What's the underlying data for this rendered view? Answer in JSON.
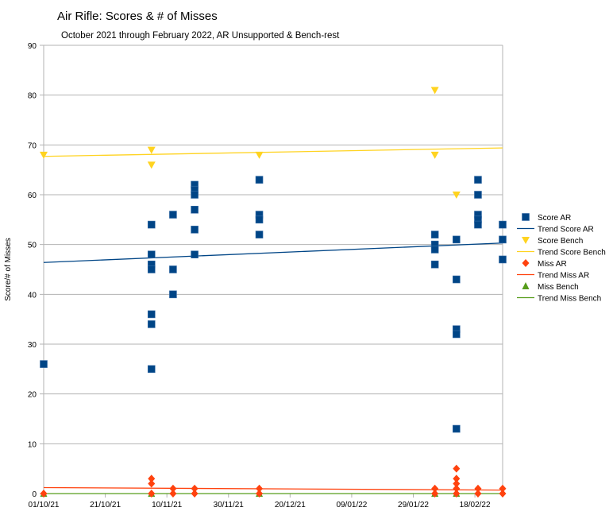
{
  "chart_data": {
    "type": "scatter",
    "title": "Air Rifle: Scores & # of Misses",
    "subtitle": "October 2021 through February 2022, AR Unsupported & Bench-rest",
    "xlabel": "",
    "ylabel": "Score/# of Misses",
    "ylim": [
      0,
      90
    ],
    "yticks": [
      0,
      10,
      20,
      30,
      40,
      50,
      60,
      70,
      80,
      90
    ],
    "xlim": [
      "01/10/21",
      "27/02/22"
    ],
    "xticks": [
      "01/10/21",
      "21/10/21",
      "10/11/21",
      "30/11/21",
      "20/12/21",
      "09/01/22",
      "29/01/22",
      "18/02/22"
    ],
    "grid": "horizontal",
    "legend_position": "right",
    "series": [
      {
        "name": "Score AR",
        "marker": "square",
        "color": "#004586",
        "points": [
          [
            "01/10/21",
            26
          ],
          [
            "05/11/21",
            54
          ],
          [
            "05/11/21",
            48
          ],
          [
            "05/11/21",
            46
          ],
          [
            "05/11/21",
            45
          ],
          [
            "05/11/21",
            36
          ],
          [
            "05/11/21",
            34
          ],
          [
            "05/11/21",
            25
          ],
          [
            "12/11/21",
            56
          ],
          [
            "12/11/21",
            45
          ],
          [
            "12/11/21",
            40
          ],
          [
            "19/11/21",
            62
          ],
          [
            "19/11/21",
            61
          ],
          [
            "19/11/21",
            60
          ],
          [
            "19/11/21",
            57
          ],
          [
            "19/11/21",
            53
          ],
          [
            "19/11/21",
            48
          ],
          [
            "10/12/21",
            63
          ],
          [
            "10/12/21",
            56
          ],
          [
            "10/12/21",
            55
          ],
          [
            "10/12/21",
            52
          ],
          [
            "05/02/22",
            52
          ],
          [
            "05/02/22",
            50
          ],
          [
            "05/02/22",
            49
          ],
          [
            "05/02/22",
            46
          ],
          [
            "12/02/22",
            51
          ],
          [
            "12/02/22",
            43
          ],
          [
            "12/02/22",
            33
          ],
          [
            "12/02/22",
            32
          ],
          [
            "12/02/22",
            13
          ],
          [
            "19/02/22",
            63
          ],
          [
            "19/02/22",
            60
          ],
          [
            "19/02/22",
            56
          ],
          [
            "19/02/22",
            55
          ],
          [
            "19/02/22",
            54
          ],
          [
            "27/02/22",
            54
          ],
          [
            "27/02/22",
            51
          ],
          [
            "27/02/22",
            47
          ]
        ]
      },
      {
        "name": "Trend Score AR",
        "line": true,
        "color": "#004586",
        "points": [
          [
            "01/10/21",
            46.4
          ],
          [
            "27/02/22",
            50.3
          ]
        ]
      },
      {
        "name": "Score Bench",
        "marker": "triangle-down",
        "color": "#ffd320",
        "points": [
          [
            "01/10/21",
            68
          ],
          [
            "05/11/21",
            69
          ],
          [
            "05/11/21",
            66
          ],
          [
            "10/12/21",
            68
          ],
          [
            "05/02/22",
            81
          ],
          [
            "05/02/22",
            68
          ],
          [
            "12/02/22",
            60
          ]
        ]
      },
      {
        "name": "Trend Score Bench",
        "line": true,
        "color": "#ffd320",
        "points": [
          [
            "01/10/21",
            67.7
          ],
          [
            "27/02/22",
            69.4
          ]
        ]
      },
      {
        "name": "Miss AR",
        "marker": "diamond",
        "color": "#ff420e",
        "points": [
          [
            "01/10/21",
            0
          ],
          [
            "05/11/21",
            3
          ],
          [
            "05/11/21",
            2
          ],
          [
            "05/11/21",
            0
          ],
          [
            "12/11/21",
            1
          ],
          [
            "12/11/21",
            0
          ],
          [
            "19/11/21",
            1
          ],
          [
            "19/11/21",
            0
          ],
          [
            "10/12/21",
            1
          ],
          [
            "10/12/21",
            0
          ],
          [
            "05/02/22",
            1
          ],
          [
            "05/02/22",
            0
          ],
          [
            "12/02/22",
            5
          ],
          [
            "12/02/22",
            3
          ],
          [
            "12/02/22",
            2
          ],
          [
            "12/02/22",
            1
          ],
          [
            "12/02/22",
            0
          ],
          [
            "19/02/22",
            1
          ],
          [
            "19/02/22",
            0
          ],
          [
            "27/02/22",
            1
          ],
          [
            "27/02/22",
            0
          ]
        ]
      },
      {
        "name": "Trend Miss AR",
        "line": true,
        "color": "#ff420e",
        "points": [
          [
            "01/10/21",
            1.2
          ],
          [
            "27/02/22",
            0.7
          ]
        ]
      },
      {
        "name": "Miss Bench",
        "marker": "triangle-up",
        "color": "#579d1c",
        "points": [
          [
            "01/10/21",
            0
          ],
          [
            "05/11/21",
            0
          ],
          [
            "10/12/21",
            0
          ],
          [
            "05/02/22",
            0
          ],
          [
            "12/02/22",
            0
          ]
        ]
      },
      {
        "name": "Trend Miss Bench",
        "line": true,
        "color": "#579d1c",
        "points": [
          [
            "01/10/21",
            0
          ],
          [
            "27/02/22",
            0
          ]
        ]
      }
    ]
  }
}
